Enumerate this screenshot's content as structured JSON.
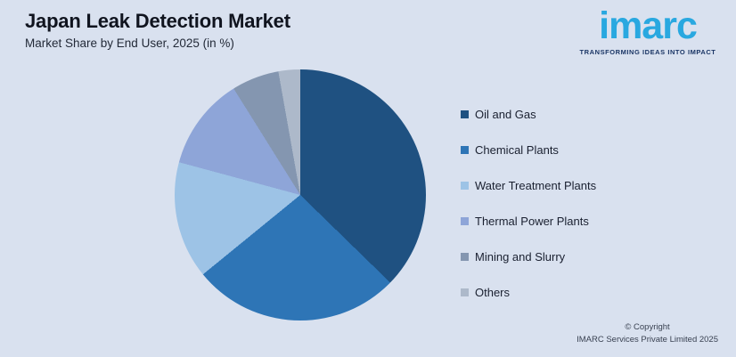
{
  "header": {
    "title": "Japan Leak Detection Market",
    "subtitle": "Market Share by End User, 2025 (in %)"
  },
  "logo": {
    "text": "imarc",
    "tagline": "TRANSFORMING IDEAS INTO IMPACT",
    "brand_color": "#29A8E0",
    "tagline_color": "#1B3666"
  },
  "footer": {
    "copyright_line1": "© Copyright",
    "copyright_line2": "IMARC Services Private Limited 2025"
  },
  "colors": {
    "background": "#D9E1EF"
  },
  "chart_data": {
    "type": "pie",
    "title": "Japan Leak Detection Market",
    "subtitle": "Market Share by End User, 2025 (in %)",
    "unit": "percent",
    "start_angle_deg": 0,
    "direction": "clockwise",
    "legend_position": "right",
    "data_labels_shown": false,
    "slices": [
      {
        "label": "Oil and Gas",
        "value": 37.3,
        "color": "#1F5181"
      },
      {
        "label": "Chemical Plants",
        "value": 26.8,
        "color": "#2E75B6"
      },
      {
        "label": "Water Treatment Plants",
        "value": 15.1,
        "color": "#9DC3E6"
      },
      {
        "label": "Thermal Power Plants",
        "value": 11.9,
        "color": "#8EA5D8"
      },
      {
        "label": "Mining and Slurry",
        "value": 6.1,
        "color": "#8496B0"
      },
      {
        "label": "Others",
        "value": 2.8,
        "color": "#ADB9CA"
      }
    ]
  }
}
